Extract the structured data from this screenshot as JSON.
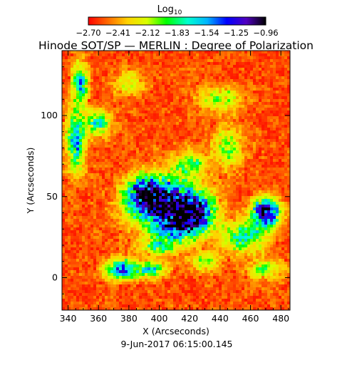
{
  "figure": {
    "title": "Hinode SOT/SP — MERLIN : Degree of Polarization",
    "timestamp": "9-Jun-2017 06:15:00.145"
  },
  "colorbar": {
    "label_main": "Log",
    "label_sub": "10",
    "tick_labels": [
      "−2.70",
      "−2.41",
      "−2.12",
      "−1.83",
      "−1.54",
      "−1.25",
      "−0.96"
    ],
    "range": [
      -2.7,
      -0.96
    ],
    "colormap_stops": [
      "#ff0000",
      "#ff6a00",
      "#ffd200",
      "#d8ff00",
      "#00ff00",
      "#00ffd0",
      "#00b4ff",
      "#0000ff",
      "#5000c0",
      "#000000"
    ]
  },
  "chart_data": {
    "type": "heatmap",
    "title": "Hinode SOT/SP — MERLIN : Degree of Polarization",
    "xlabel": "X (Arcseconds)",
    "ylabel": "Y (Arcseconds)",
    "xlim": [
      336,
      486
    ],
    "ylim": [
      -20,
      140
    ],
    "xticks": [
      340,
      360,
      380,
      400,
      420,
      440,
      460,
      480
    ],
    "yticks": [
      0,
      50,
      100
    ],
    "x_tick_labels": [
      "340",
      "360",
      "380",
      "400",
      "420",
      "440",
      "460",
      "480"
    ],
    "y_tick_labels": [
      "0",
      "50",
      "100"
    ],
    "colorbar_range": [
      -2.7,
      -0.96
    ],
    "colorbar_label": "Log10",
    "notes_visible_structure": "Background mostly near -2.70 (red); elevated polarization network (green/blue, up to about -1.2) concentrated around X 380-440, Y 30-60; lane around X 455-480, Y 25-45; blue features near X 365-385, Y 0-10 and along left edge near Y 60-100."
  }
}
